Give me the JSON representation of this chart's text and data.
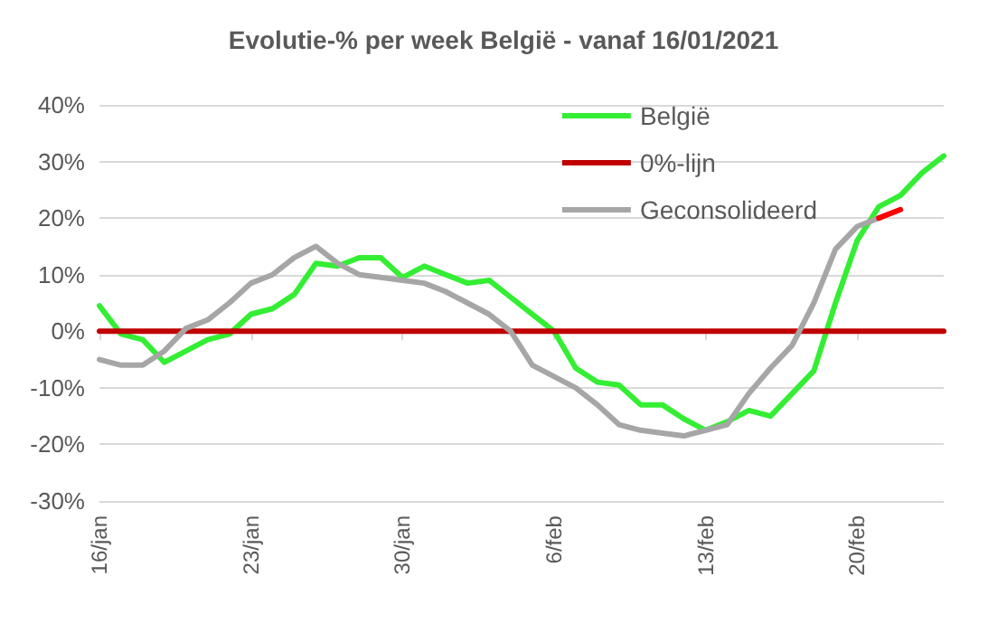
{
  "chart_data": {
    "type": "line",
    "title": "Evolutie-% per week België - vanaf 16/01/2021",
    "categories": [
      "16/jan",
      null,
      null,
      null,
      null,
      null,
      null,
      "23/jan",
      null,
      null,
      null,
      null,
      null,
      null,
      "30/jan",
      null,
      null,
      null,
      null,
      null,
      null,
      "6/feb",
      null,
      null,
      null,
      null,
      null,
      null,
      "13/feb",
      null,
      null,
      null,
      null,
      null,
      null,
      "20/feb",
      null,
      null,
      null,
      null
    ],
    "series": [
      {
        "name": "België",
        "color": "#33ee33",
        "values": [
          4.5,
          -0.5,
          -1.5,
          -5.5,
          -3.5,
          -1.5,
          -0.5,
          3,
          4,
          6.5,
          12,
          11.5,
          13,
          13,
          9.5,
          11.5,
          10,
          8.5,
          9,
          6,
          3,
          0,
          -6.5,
          -9,
          -9.5,
          -13,
          -13,
          -15.5,
          -17.5,
          -16,
          -14,
          -15,
          -11,
          -7,
          5,
          16,
          22,
          24,
          28,
          31
        ]
      },
      {
        "name": "0%-lijn",
        "color": "#c00000",
        "values": [
          0,
          0,
          0,
          0,
          0,
          0,
          0,
          0,
          0,
          0,
          0,
          0,
          0,
          0,
          0,
          0,
          0,
          0,
          0,
          0,
          0,
          0,
          0,
          0,
          0,
          0,
          0,
          0,
          0,
          0,
          0,
          0,
          0,
          0,
          0,
          0,
          0,
          0,
          0,
          0
        ]
      },
      {
        "name": "Geconsolideerd",
        "color": "#a6a6a6",
        "values": [
          -5,
          -6,
          -6,
          -3.5,
          0.5,
          2,
          5,
          8.5,
          10,
          13,
          15,
          12,
          10,
          9.5,
          9,
          8.5,
          7,
          5,
          3,
          0,
          -6,
          -8,
          -10,
          -13,
          -16.5,
          -17.5,
          -18,
          -18.5,
          -17.5,
          -16.5,
          -11,
          -6.5,
          -2.5,
          5,
          14.5,
          18.5,
          20,
          null,
          null,
          null
        ]
      },
      {
        "color": "#ff0000",
        "values": [
          null,
          null,
          null,
          null,
          null,
          null,
          null,
          null,
          null,
          null,
          null,
          null,
          null,
          null,
          null,
          null,
          null,
          null,
          null,
          null,
          null,
          null,
          null,
          null,
          null,
          null,
          null,
          null,
          null,
          null,
          null,
          null,
          null,
          null,
          null,
          null,
          20,
          21.5,
          null,
          null
        ]
      }
    ],
    "ylim": [
      -30,
      40
    ],
    "yticks": [
      {
        "value": -30,
        "label": "-30%"
      },
      {
        "value": -20,
        "label": "-20%"
      },
      {
        "value": -10,
        "label": "-10%"
      },
      {
        "value": 0,
        "label": "0%"
      },
      {
        "value": 10,
        "label": "10%"
      },
      {
        "value": 20,
        "label": "20%"
      },
      {
        "value": 30,
        "label": "30%"
      },
      {
        "value": 40,
        "label": "40%"
      }
    ],
    "grid": "y",
    "legend": "top right",
    "marker": "none",
    "line_style": "solid"
  }
}
